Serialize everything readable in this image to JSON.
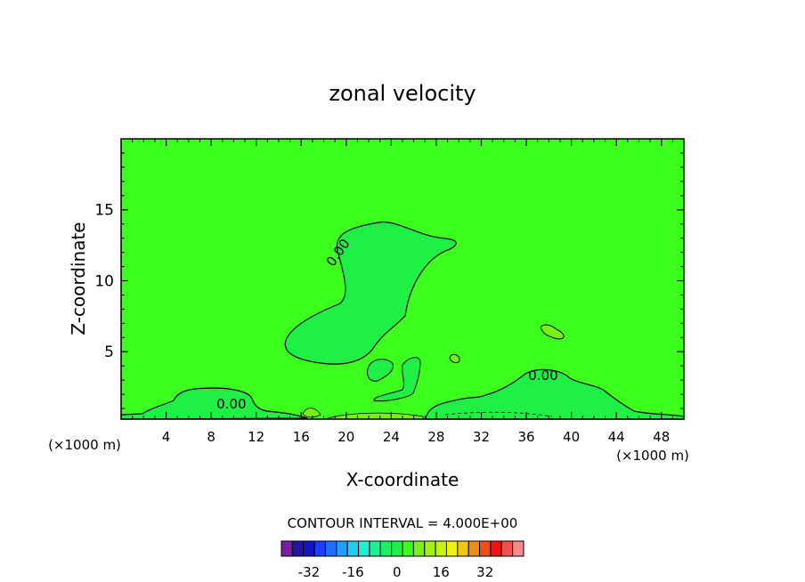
{
  "chart_data": {
    "type": "contour",
    "title": "zonal velocity",
    "xlabel": "X-coordinate",
    "ylabel": "Z-coordinate",
    "x_unit_note": "(×1000 m)",
    "x_unit_note_left": "(×1000 m)",
    "xlim": [
      0,
      50
    ],
    "ylim": [
      0.25,
      20
    ],
    "x_ticks": [
      4,
      8,
      12,
      16,
      20,
      24,
      28,
      32,
      36,
      40,
      44,
      48
    ],
    "y_ticks": [
      5,
      10,
      15
    ],
    "background_level": 0,
    "contour_labels": [
      {
        "text": "0.00",
        "x": 19.6,
        "y": 11.8,
        "angle": -55
      },
      {
        "text": "0.00",
        "x": 9.8,
        "y": 1.0,
        "angle": 0
      },
      {
        "text": "0.00",
        "x": 37.5,
        "y": 3.0,
        "angle": 0
      }
    ],
    "colorbar": {
      "title": "CONTOUR INTERVAL = 4.000E+00",
      "tick_labels": [
        "-32",
        "-16",
        "0",
        "16",
        "32"
      ],
      "tick_values": [
        -32,
        -16,
        0,
        16,
        32
      ],
      "levels": [
        -40,
        -36,
        -32,
        -28,
        -24,
        -20,
        -16,
        -12,
        -8,
        -4,
        0,
        4,
        8,
        12,
        16,
        20,
        24,
        28,
        32,
        36,
        40
      ],
      "colors": [
        "#7a1fa2",
        "#2414a6",
        "#1414c8",
        "#1e3cff",
        "#1e6eff",
        "#1ea0ff",
        "#1ecdf0",
        "#1ef0d2",
        "#1ef096",
        "#1ef064",
        "#1ef046",
        "#3cff1e",
        "#78f014",
        "#a0f014",
        "#c8f014",
        "#f0f014",
        "#f0c814",
        "#f08c14",
        "#f05014",
        "#f01414",
        "#f05050",
        "#f08c8c"
      ]
    }
  }
}
